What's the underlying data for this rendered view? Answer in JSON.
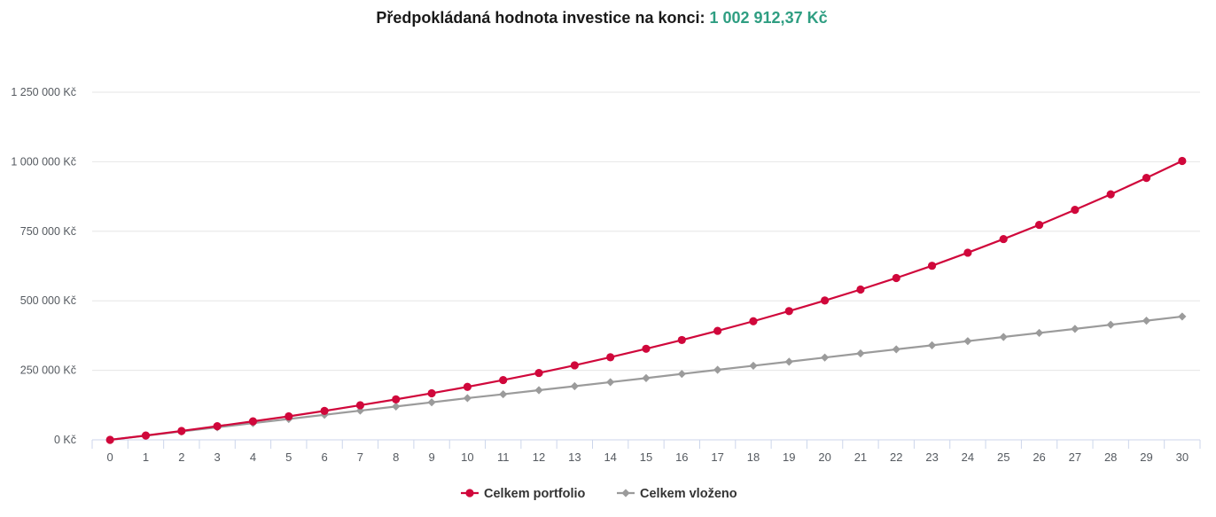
{
  "title": {
    "prefix": "Předpokládaná hodnota investice na konci:",
    "amount": "1 002 912,37 Kč"
  },
  "chart_data": {
    "type": "line",
    "title": "Předpokládaná hodnota investice na konci: 1 002 912,37 Kč",
    "xlabel": "",
    "ylabel": "",
    "x": [
      0,
      1,
      2,
      3,
      4,
      5,
      6,
      7,
      8,
      9,
      10,
      11,
      12,
      13,
      14,
      15,
      16,
      17,
      18,
      19,
      20,
      21,
      22,
      23,
      24,
      25,
      26,
      27,
      28,
      29,
      30
    ],
    "ylim": [
      0,
      1250000
    ],
    "y_ticks": [
      0,
      250000,
      500000,
      750000,
      1000000,
      1250000
    ],
    "y_tick_labels": [
      "0 Kč",
      "250 000 Kč",
      "500 000 Kč",
      "750 000 Kč",
      "1 000 000 Kč",
      "1 250 000 Kč"
    ],
    "grid": true,
    "legend_position": "bottom-center",
    "series": [
      {
        "name": "Celkem portfolio",
        "color": "#d0073b",
        "marker": "circle",
        "values": [
          0,
          15500,
          32000,
          49000,
          66500,
          84500,
          104000,
          124500,
          145500,
          167500,
          190500,
          215000,
          240500,
          268000,
          297000,
          327500,
          359000,
          392000,
          426500,
          463000,
          501000,
          540500,
          582000,
          626000,
          673000,
          722000,
          773000,
          827000,
          883000,
          942000,
          1002912.37
        ]
      },
      {
        "name": "Celkem vloženo",
        "color": "#9b9b9b",
        "marker": "diamond",
        "values": [
          0,
          15000,
          30000,
          45000,
          60000,
          75000,
          90000,
          105000,
          120000,
          135000,
          150000,
          164000,
          178500,
          193000,
          207500,
          222000,
          237000,
          252000,
          266500,
          281000,
          296000,
          311000,
          325500,
          340000,
          355000,
          370000,
          384500,
          399000,
          414000,
          428500,
          443500
        ]
      }
    ]
  }
}
